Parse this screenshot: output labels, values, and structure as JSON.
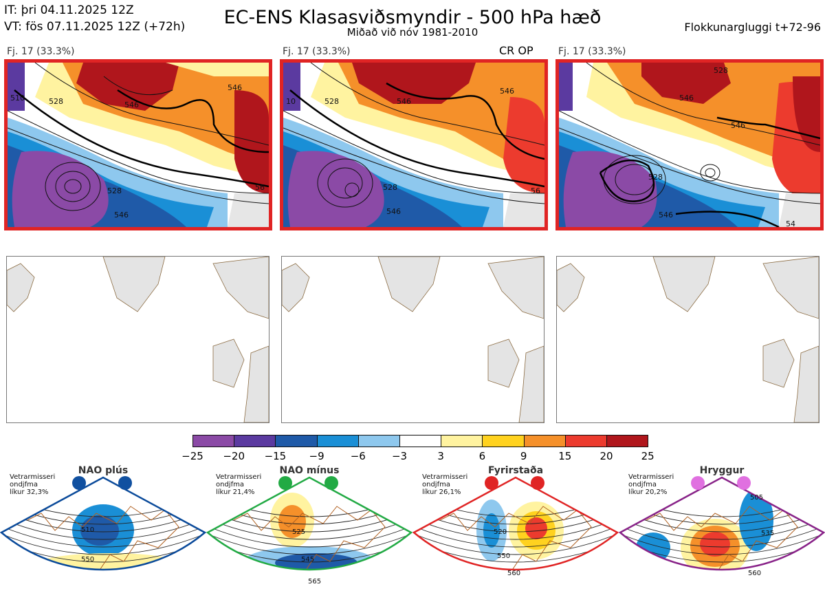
{
  "header": {
    "it_line": "IT: þri 04.11.2025 12Z",
    "vt_line": "VT: fös 07.11.2025 12Z  (+72h)",
    "title": "EC-ENS Klasasviðsmyndir - 500 hPa hæð",
    "subtitle": "Miðað við nóv 1981-2010",
    "right_label": "Flokkunargluggi t+72-96"
  },
  "panels": [
    {
      "label": "Fj. 17 (33.3%)",
      "tag": "",
      "contours": [
        "510",
        "528",
        "546",
        "546",
        "528",
        "546",
        "56"
      ]
    },
    {
      "label": "Fj. 17 (33.3%)",
      "tag": "CR OP",
      "contours": [
        "10",
        "528",
        "546",
        "546",
        "528",
        "546",
        "56"
      ]
    },
    {
      "label": "Fj. 17 (33.3%)",
      "tag": "",
      "contours": [
        "528",
        "546",
        "546",
        "528",
        "546",
        "54"
      ]
    }
  ],
  "colorbar": {
    "ticks": [
      "−25",
      "−20",
      "−15",
      "−9",
      "−6",
      "−3",
      "3",
      "6",
      "9",
      "15",
      "20",
      "25"
    ],
    "colors": [
      "#8b4aa6",
      "#5b3aa0",
      "#1f5aa8",
      "#1a8fd6",
      "#8ec8ee",
      "#ffffff",
      "#fff3a0",
      "#ffd21f",
      "#f5902a",
      "#ec3b2e",
      "#b0161c"
    ]
  },
  "regimes": [
    {
      "name": "NAO plús",
      "note": [
        "Vetrarmisseri",
        "ondjfma",
        "líkur 32,3%"
      ],
      "dot_color": "#1050a0",
      "frame_color": "#0a4a9a",
      "labels": [
        "510",
        "550"
      ]
    },
    {
      "name": "NAO mínus",
      "note": [
        "Vetrarmisseri",
        "ondjfma",
        "líkur 21,4%"
      ],
      "dot_color": "#22aa44",
      "frame_color": "#22aa44",
      "labels": [
        "525",
        "545",
        "565"
      ]
    },
    {
      "name": "Fyrirstaða",
      "note": [
        "Vetrarmisseri",
        "ondjfma",
        "líkur 26,1%"
      ],
      "dot_color": "#e02424",
      "frame_color": "#e02424",
      "labels": [
        "520",
        "550",
        "560"
      ]
    },
    {
      "name": "Hryggur",
      "note": [
        "Vetrarmisseri",
        "ondjfma",
        "líkur 20,2%"
      ],
      "dot_color": "#e070e0",
      "frame_color": "#882288",
      "labels": [
        "505",
        "535",
        "560"
      ]
    }
  ]
}
